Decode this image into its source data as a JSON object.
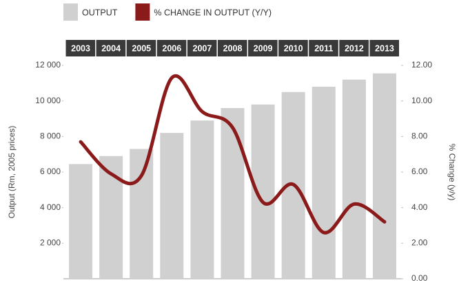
{
  "chart_data": {
    "type": "bar",
    "categories": [
      "2003",
      "2004",
      "2005",
      "2006",
      "2007",
      "2008",
      "2009",
      "2010",
      "2011",
      "2012",
      "2013"
    ],
    "series": [
      {
        "name": "OUTPUT",
        "type": "bar",
        "color": "#d0d0d0",
        "values": [
          6450,
          6900,
          7300,
          8200,
          8900,
          9600,
          9800,
          10500,
          10800,
          11200,
          11550
        ]
      },
      {
        "name": "% CHANGE IN OUTPUT (Y/Y)",
        "type": "line",
        "axis": "y2",
        "color": "#8b1a1a",
        "values": [
          7.7,
          5.9,
          5.8,
          11.3,
          9.4,
          8.5,
          4.3,
          5.3,
          2.6,
          4.2,
          3.2
        ]
      }
    ],
    "ylabel": "Output (Rm, 2005 prices)",
    "y2label": "% Change (y/y)",
    "ylim": [
      0,
      12000
    ],
    "yticks": [
      {
        "value": 2000,
        "label": "2 000"
      },
      {
        "value": 4000,
        "label": "4 000"
      },
      {
        "value": 6000,
        "label": "6 000"
      },
      {
        "value": 8000,
        "label": "8 000"
      },
      {
        "value": 10000,
        "label": "10 000"
      },
      {
        "value": 12000,
        "label": "12 000"
      }
    ],
    "y2lim": [
      0,
      12
    ],
    "y2ticks": [
      {
        "value": 0,
        "label": "0.00"
      },
      {
        "value": 2,
        "label": "2.00"
      },
      {
        "value": 4,
        "label": "4.00"
      },
      {
        "value": 6,
        "label": "6.00"
      },
      {
        "value": 8,
        "label": "8.00"
      },
      {
        "value": 10,
        "label": "10.00"
      },
      {
        "value": 12,
        "label": "12.00"
      }
    ],
    "legend": "top"
  }
}
